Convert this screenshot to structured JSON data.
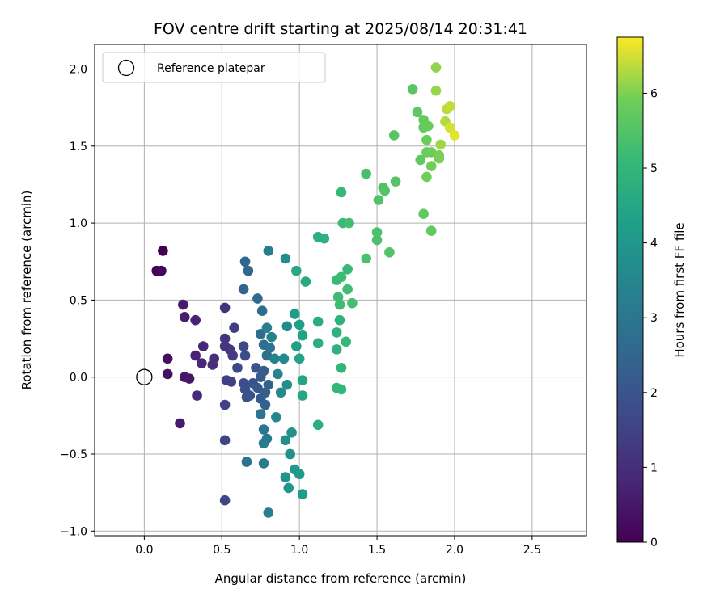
{
  "chart_data": {
    "type": "scatter",
    "title": "FOV centre drift starting at 2025/08/14 20:31:41",
    "xlabel": "Angular distance from reference (arcmin)",
    "ylabel": "Rotation from reference (arcmin)",
    "xlim": [
      -0.32,
      2.85
    ],
    "ylim": [
      -1.03,
      2.16
    ],
    "xticks": [
      0.0,
      0.5,
      1.0,
      1.5,
      2.0,
      2.5
    ],
    "xtick_labels": [
      "0.0",
      "0.5",
      "1.0",
      "1.5",
      "2.0",
      "2.5"
    ],
    "yticks": [
      -1.0,
      -0.5,
      0.0,
      0.5,
      1.0,
      1.5,
      2.0
    ],
    "ytick_labels": [
      "−1.0",
      "−0.5",
      "0.0",
      "0.5",
      "1.0",
      "1.5",
      "2.0"
    ],
    "grid": true,
    "legend": {
      "position": "top-left",
      "entries": [
        {
          "label": "Reference platepar",
          "marker": "open-circle"
        }
      ]
    },
    "reference_point": {
      "x": 0.0,
      "y": 0.0
    },
    "colorbar": {
      "label": "Hours from first FF file",
      "colormap": "viridis",
      "range": [
        0,
        6.75
      ],
      "ticks": [
        0,
        1,
        2,
        3,
        4,
        5,
        6
      ],
      "tick_labels": [
        "0",
        "1",
        "2",
        "3",
        "4",
        "5",
        "6"
      ]
    },
    "points": [
      {
        "x": 0.12,
        "y": 0.82,
        "c": 0.0
      },
      {
        "x": 0.08,
        "y": 0.69,
        "c": 0.05
      },
      {
        "x": 0.11,
        "y": 0.69,
        "c": 0.1
      },
      {
        "x": 0.15,
        "y": 0.12,
        "c": 0.3
      },
      {
        "x": 0.15,
        "y": 0.02,
        "c": 0.35
      },
      {
        "x": 0.26,
        "y": 0.0,
        "c": 0.45
      },
      {
        "x": 0.29,
        "y": -0.01,
        "c": 0.5
      },
      {
        "x": 0.23,
        "y": -0.3,
        "c": 0.55
      },
      {
        "x": 0.25,
        "y": 0.47,
        "c": 0.6
      },
      {
        "x": 0.26,
        "y": 0.39,
        "c": 0.65
      },
      {
        "x": 0.33,
        "y": 0.37,
        "c": 0.7
      },
      {
        "x": 0.33,
        "y": 0.14,
        "c": 0.75
      },
      {
        "x": 0.38,
        "y": 0.2,
        "c": 0.8
      },
      {
        "x": 0.37,
        "y": 0.09,
        "c": 0.85
      },
      {
        "x": 0.34,
        "y": -0.12,
        "c": 0.9
      },
      {
        "x": 0.44,
        "y": 0.08,
        "c": 0.95
      },
      {
        "x": 0.45,
        "y": 0.12,
        "c": 1.0
      },
      {
        "x": 0.52,
        "y": 0.45,
        "c": 1.1
      },
      {
        "x": 0.52,
        "y": 0.25,
        "c": 1.15
      },
      {
        "x": 0.52,
        "y": 0.2,
        "c": 1.2
      },
      {
        "x": 0.55,
        "y": 0.18,
        "c": 1.25
      },
      {
        "x": 0.57,
        "y": 0.14,
        "c": 1.3
      },
      {
        "x": 0.58,
        "y": 0.32,
        "c": 1.35
      },
      {
        "x": 0.53,
        "y": -0.02,
        "c": 1.4
      },
      {
        "x": 0.56,
        "y": -0.03,
        "c": 1.45
      },
      {
        "x": 0.52,
        "y": -0.18,
        "c": 1.5
      },
      {
        "x": 0.52,
        "y": -0.41,
        "c": 1.55
      },
      {
        "x": 0.52,
        "y": -0.8,
        "c": 1.6
      },
      {
        "x": 0.6,
        "y": 0.06,
        "c": 1.65
      },
      {
        "x": 0.64,
        "y": 0.2,
        "c": 1.7
      },
      {
        "x": 0.65,
        "y": 0.14,
        "c": 1.75
      },
      {
        "x": 0.64,
        "y": -0.04,
        "c": 1.8
      },
      {
        "x": 0.65,
        "y": -0.08,
        "c": 1.85
      },
      {
        "x": 0.66,
        "y": -0.13,
        "c": 1.9
      },
      {
        "x": 0.68,
        "y": -0.12,
        "c": 1.95
      },
      {
        "x": 0.7,
        "y": -0.04,
        "c": 2.0
      },
      {
        "x": 0.72,
        "y": 0.06,
        "c": 2.05
      },
      {
        "x": 0.73,
        "y": -0.07,
        "c": 2.1
      },
      {
        "x": 0.75,
        "y": -0.14,
        "c": 2.15
      },
      {
        "x": 0.75,
        "y": 0.0,
        "c": 2.2
      },
      {
        "x": 0.77,
        "y": 0.04,
        "c": 2.25
      },
      {
        "x": 0.78,
        "y": -0.1,
        "c": 2.3
      },
      {
        "x": 0.78,
        "y": -0.18,
        "c": 2.35
      },
      {
        "x": 0.8,
        "y": -0.05,
        "c": 2.4
      },
      {
        "x": 0.64,
        "y": 0.57,
        "c": 2.45
      },
      {
        "x": 0.65,
        "y": 0.75,
        "c": 2.5
      },
      {
        "x": 0.67,
        "y": 0.69,
        "c": 2.55
      },
      {
        "x": 0.73,
        "y": 0.51,
        "c": 2.6
      },
      {
        "x": 0.76,
        "y": 0.43,
        "c": 2.65
      },
      {
        "x": 0.75,
        "y": 0.28,
        "c": 2.7
      },
      {
        "x": 0.77,
        "y": 0.21,
        "c": 2.75
      },
      {
        "x": 0.79,
        "y": 0.14,
        "c": 2.8
      },
      {
        "x": 0.81,
        "y": 0.19,
        "c": 2.85
      },
      {
        "x": 0.66,
        "y": -0.55,
        "c": 2.9
      },
      {
        "x": 0.75,
        "y": -0.24,
        "c": 2.95
      },
      {
        "x": 0.77,
        "y": -0.34,
        "c": 3.0
      },
      {
        "x": 0.79,
        "y": -0.4,
        "c": 3.05
      },
      {
        "x": 0.77,
        "y": -0.43,
        "c": 3.1
      },
      {
        "x": 0.77,
        "y": -0.56,
        "c": 3.15
      },
      {
        "x": 0.8,
        "y": -0.88,
        "c": 3.2
      },
      {
        "x": 0.8,
        "y": 0.82,
        "c": 3.25
      },
      {
        "x": 0.79,
        "y": 0.32,
        "c": 3.3
      },
      {
        "x": 0.82,
        "y": 0.26,
        "c": 3.35
      },
      {
        "x": 0.84,
        "y": 0.12,
        "c": 3.4
      },
      {
        "x": 0.86,
        "y": 0.02,
        "c": 3.45
      },
      {
        "x": 0.85,
        "y": -0.26,
        "c": 3.5
      },
      {
        "x": 0.88,
        "y": -0.1,
        "c": 3.55
      },
      {
        "x": 0.9,
        "y": 0.12,
        "c": 3.6
      },
      {
        "x": 0.92,
        "y": 0.33,
        "c": 3.65
      },
      {
        "x": 0.91,
        "y": 0.77,
        "c": 3.7
      },
      {
        "x": 0.92,
        "y": -0.05,
        "c": 3.75
      },
      {
        "x": 0.91,
        "y": -0.41,
        "c": 3.8
      },
      {
        "x": 0.95,
        "y": -0.36,
        "c": 3.85
      },
      {
        "x": 0.94,
        "y": -0.5,
        "c": 3.9
      },
      {
        "x": 0.91,
        "y": -0.65,
        "c": 3.95
      },
      {
        "x": 0.93,
        "y": -0.72,
        "c": 4.0
      },
      {
        "x": 0.97,
        "y": -0.6,
        "c": 4.05
      },
      {
        "x": 1.0,
        "y": -0.63,
        "c": 4.1
      },
      {
        "x": 1.02,
        "y": -0.76,
        "c": 4.15
      },
      {
        "x": 0.97,
        "y": 0.41,
        "c": 4.2
      },
      {
        "x": 0.98,
        "y": 0.2,
        "c": 4.25
      },
      {
        "x": 1.0,
        "y": 0.34,
        "c": 4.3
      },
      {
        "x": 1.02,
        "y": 0.27,
        "c": 4.35
      },
      {
        "x": 1.0,
        "y": 0.12,
        "c": 4.4
      },
      {
        "x": 1.02,
        "y": -0.02,
        "c": 4.45
      },
      {
        "x": 1.02,
        "y": -0.12,
        "c": 4.5
      },
      {
        "x": 0.98,
        "y": 0.69,
        "c": 4.55
      },
      {
        "x": 1.04,
        "y": 0.62,
        "c": 4.6
      },
      {
        "x": 1.12,
        "y": 0.36,
        "c": 4.65
      },
      {
        "x": 1.12,
        "y": 0.22,
        "c": 4.7
      },
      {
        "x": 1.12,
        "y": -0.31,
        "c": 4.75
      },
      {
        "x": 1.12,
        "y": 0.91,
        "c": 4.8
      },
      {
        "x": 1.16,
        "y": 0.9,
        "c": 4.82
      },
      {
        "x": 1.24,
        "y": 0.29,
        "c": 4.85
      },
      {
        "x": 1.26,
        "y": 0.37,
        "c": 4.88
      },
      {
        "x": 1.24,
        "y": 0.18,
        "c": 4.9
      },
      {
        "x": 1.27,
        "y": 0.06,
        "c": 4.95
      },
      {
        "x": 1.24,
        "y": -0.07,
        "c": 5.0
      },
      {
        "x": 1.27,
        "y": -0.08,
        "c": 5.02
      },
      {
        "x": 1.27,
        "y": 1.2,
        "c": 5.05
      },
      {
        "x": 1.3,
        "y": 0.23,
        "c": 5.08
      },
      {
        "x": 1.31,
        "y": 0.7,
        "c": 5.1
      },
      {
        "x": 1.28,
        "y": 1.0,
        "c": 5.12
      },
      {
        "x": 1.24,
        "y": 0.63,
        "c": 5.15
      },
      {
        "x": 1.27,
        "y": 0.65,
        "c": 5.18
      },
      {
        "x": 1.25,
        "y": 0.52,
        "c": 5.2
      },
      {
        "x": 1.26,
        "y": 0.47,
        "c": 5.22
      },
      {
        "x": 1.31,
        "y": 0.57,
        "c": 5.25
      },
      {
        "x": 1.34,
        "y": 0.48,
        "c": 5.28
      },
      {
        "x": 1.32,
        "y": 1.0,
        "c": 5.3
      },
      {
        "x": 1.43,
        "y": 1.32,
        "c": 5.35
      },
      {
        "x": 1.43,
        "y": 0.77,
        "c": 5.38
      },
      {
        "x": 1.5,
        "y": 0.94,
        "c": 5.4
      },
      {
        "x": 1.5,
        "y": 0.89,
        "c": 5.42
      },
      {
        "x": 1.51,
        "y": 1.15,
        "c": 5.45
      },
      {
        "x": 1.54,
        "y": 1.23,
        "c": 5.48
      },
      {
        "x": 1.55,
        "y": 1.21,
        "c": 5.5
      },
      {
        "x": 1.58,
        "y": 0.81,
        "c": 5.52
      },
      {
        "x": 1.62,
        "y": 1.27,
        "c": 5.55
      },
      {
        "x": 1.61,
        "y": 1.57,
        "c": 5.58
      },
      {
        "x": 1.73,
        "y": 1.87,
        "c": 5.6
      },
      {
        "x": 1.76,
        "y": 1.72,
        "c": 5.65
      },
      {
        "x": 1.78,
        "y": 1.41,
        "c": 5.68
      },
      {
        "x": 1.8,
        "y": 1.06,
        "c": 5.7
      },
      {
        "x": 1.85,
        "y": 0.95,
        "c": 5.72
      },
      {
        "x": 1.8,
        "y": 1.67,
        "c": 5.75
      },
      {
        "x": 1.8,
        "y": 1.62,
        "c": 5.78
      },
      {
        "x": 1.83,
        "y": 1.63,
        "c": 5.8
      },
      {
        "x": 1.82,
        "y": 1.54,
        "c": 5.82
      },
      {
        "x": 1.82,
        "y": 1.46,
        "c": 5.85
      },
      {
        "x": 1.85,
        "y": 1.46,
        "c": 5.88
      },
      {
        "x": 1.82,
        "y": 1.3,
        "c": 5.9
      },
      {
        "x": 1.85,
        "y": 1.37,
        "c": 5.92
      },
      {
        "x": 1.9,
        "y": 1.44,
        "c": 5.95
      },
      {
        "x": 1.9,
        "y": 1.42,
        "c": 5.98
      },
      {
        "x": 1.88,
        "y": 2.01,
        "c": 6.1
      },
      {
        "x": 1.88,
        "y": 1.86,
        "c": 6.15
      },
      {
        "x": 1.91,
        "y": 1.51,
        "c": 6.2
      },
      {
        "x": 1.94,
        "y": 1.66,
        "c": 6.3
      },
      {
        "x": 1.95,
        "y": 1.74,
        "c": 6.35
      },
      {
        "x": 1.97,
        "y": 1.76,
        "c": 6.4
      },
      {
        "x": 1.97,
        "y": 1.62,
        "c": 6.5
      },
      {
        "x": 2.0,
        "y": 1.57,
        "c": 6.6
      }
    ]
  }
}
